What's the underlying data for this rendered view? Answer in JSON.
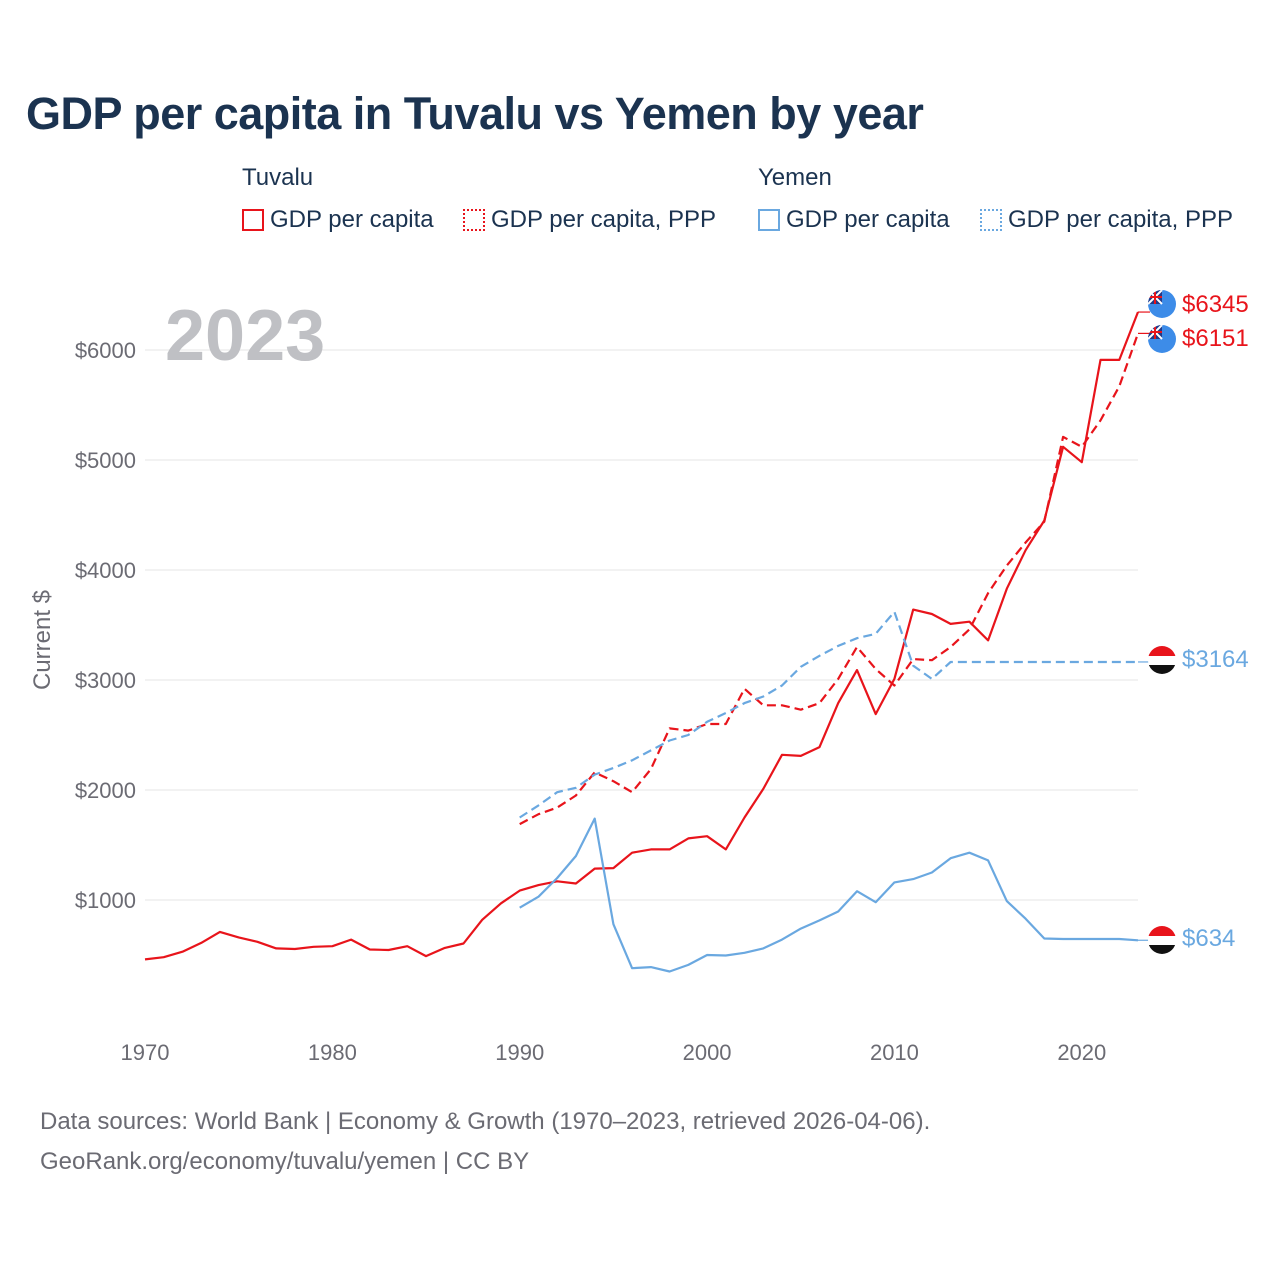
{
  "title": "GDP per capita in Tuvalu vs Yemen by year",
  "legend": {
    "groups": [
      {
        "country": "Tuvalu",
        "items": [
          "GDP per capita",
          "GDP per capita, PPP"
        ]
      },
      {
        "country": "Yemen",
        "items": [
          "GDP per capita",
          "GDP per capita, PPP"
        ]
      }
    ]
  },
  "year_label": "2023",
  "colors": {
    "tuvalu": "#e8141b",
    "yemen": "#6aa8e0",
    "title": "#1b3350",
    "axis_text": "#6b6b73",
    "grid": "#e6e6e6",
    "year": "#bfc0c4"
  },
  "chart_data": {
    "type": "line",
    "title": "GDP per capita in Tuvalu vs Yemen by year",
    "xlabel": "",
    "ylabel": "Current $",
    "xlim": [
      1970,
      2023
    ],
    "ylim": [
      0,
      6500
    ],
    "xticks": [
      1970,
      1980,
      1990,
      2000,
      2010,
      2020
    ],
    "yticks": [
      1000,
      2000,
      3000,
      4000,
      5000,
      6000
    ],
    "ytick_labels": [
      "$1000",
      "$2000",
      "$3000",
      "$4000",
      "$5000",
      "$6000"
    ],
    "grid": true,
    "series": [
      {
        "name": "Tuvalu GDP per capita",
        "country": "Tuvalu",
        "style": "solid",
        "color": "#e8141b",
        "x": [
          1970,
          1971,
          1972,
          1973,
          1974,
          1975,
          1976,
          1977,
          1978,
          1979,
          1980,
          1981,
          1982,
          1983,
          1984,
          1985,
          1986,
          1987,
          1988,
          1989,
          1990,
          1991,
          1992,
          1993,
          1994,
          1995,
          1996,
          1997,
          1998,
          1999,
          2000,
          2001,
          2002,
          2003,
          2004,
          2005,
          2006,
          2007,
          2008,
          2009,
          2010,
          2011,
          2012,
          2013,
          2014,
          2015,
          2016,
          2017,
          2018,
          2019,
          2020,
          2021,
          2022,
          2023
        ],
        "values": [
          460,
          480,
          530,
          610,
          710,
          660,
          620,
          560,
          555,
          575,
          580,
          640,
          550,
          545,
          580,
          490,
          565,
          605,
          820,
          970,
          1085,
          1135,
          1170,
          1150,
          1285,
          1290,
          1430,
          1460,
          1460,
          1560,
          1580,
          1460,
          1750,
          2010,
          2320,
          2310,
          2390,
          2790,
          3090,
          2690,
          3010,
          3640,
          3600,
          3510,
          3530,
          3360,
          3830,
          4180,
          4450,
          5120,
          4980,
          5910,
          5910,
          6345
        ],
        "end_label": "$6345"
      },
      {
        "name": "Tuvalu GDP per capita, PPP",
        "country": "Tuvalu",
        "style": "dashed",
        "color": "#e8141b",
        "x": [
          1990,
          1991,
          1992,
          1993,
          1994,
          1995,
          1996,
          1997,
          1998,
          1999,
          2000,
          2001,
          2002,
          2003,
          2004,
          2005,
          2006,
          2007,
          2008,
          2009,
          2010,
          2011,
          2012,
          2013,
          2014,
          2015,
          2016,
          2017,
          2018,
          2019,
          2020,
          2021,
          2022,
          2023
        ],
        "values": [
          1690,
          1780,
          1840,
          1950,
          2160,
          2080,
          1980,
          2190,
          2560,
          2540,
          2600,
          2600,
          2920,
          2770,
          2770,
          2730,
          2790,
          3010,
          3300,
          3100,
          2950,
          3190,
          3180,
          3300,
          3460,
          3790,
          4040,
          4250,
          4440,
          5210,
          5120,
          5360,
          5670,
          6151
        ],
        "end_label": "$6151"
      },
      {
        "name": "Yemen GDP per capita",
        "country": "Yemen",
        "style": "solid",
        "color": "#6aa8e0",
        "x": [
          1990,
          1991,
          1992,
          1993,
          1994,
          1995,
          1996,
          1997,
          1998,
          1999,
          2000,
          2001,
          2002,
          2003,
          2004,
          2005,
          2006,
          2007,
          2008,
          2009,
          2010,
          2011,
          2012,
          2013,
          2014,
          2015,
          2016,
          2017,
          2018,
          2019,
          2020,
          2021,
          2022,
          2023
        ],
        "values": [
          930,
          1030,
          1200,
          1400,
          1740,
          780,
          380,
          390,
          350,
          410,
          500,
          495,
          520,
          560,
          640,
          740,
          815,
          895,
          1080,
          980,
          1160,
          1190,
          1250,
          1380,
          1430,
          1360,
          990,
          830,
          650,
          645,
          645,
          645,
          645,
          634
        ],
        "end_label": "$634"
      },
      {
        "name": "Yemen GDP per capita, PPP",
        "country": "Yemen",
        "style": "dashed",
        "color": "#6aa8e0",
        "x": [
          1990,
          1991,
          1992,
          1993,
          1994,
          1995,
          1996,
          1997,
          1998,
          1999,
          2000,
          2001,
          2002,
          2003,
          2004,
          2005,
          2006,
          2007,
          2008,
          2009,
          2010,
          2011,
          2012,
          2013,
          2014,
          2015,
          2016,
          2017,
          2018,
          2019,
          2020,
          2021,
          2022,
          2023
        ],
        "values": [
          1750,
          1860,
          1980,
          2020,
          2140,
          2200,
          2270,
          2360,
          2450,
          2500,
          2620,
          2700,
          2790,
          2850,
          2950,
          3120,
          3220,
          3310,
          3380,
          3420,
          3620,
          3130,
          3010,
          3164,
          3164,
          3164,
          3164,
          3164,
          3164,
          3164,
          3164,
          3164,
          3164,
          3164
        ],
        "end_label": "$3164"
      }
    ]
  },
  "footer": {
    "line1": "Data sources: World Bank | Economy & Growth (1970–2023, retrieved 2026-04-06).",
    "line2": "GeoRank.org/economy/tuvalu/yemen | CC BY"
  }
}
